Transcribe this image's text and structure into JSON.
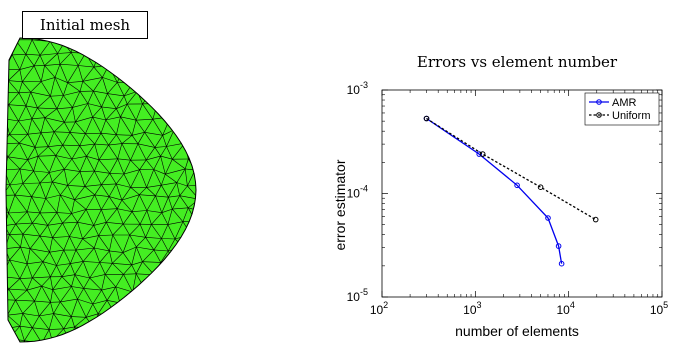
{
  "mesh": {
    "title": "Initial mesh",
    "fill_color": "#44ee22",
    "edge_color": "#000000"
  },
  "chart_data": {
    "type": "line",
    "title": "Errors vs element number",
    "xlabel": "number of elements",
    "ylabel": "error estimator",
    "x_scale": "log",
    "y_scale": "log",
    "xlim": [
      100,
      100000
    ],
    "ylim": [
      1e-05,
      0.001
    ],
    "x_ticks": [
      {
        "value": 100,
        "base": "10",
        "exp": "2"
      },
      {
        "value": 1000,
        "base": "10",
        "exp": "3"
      },
      {
        "value": 10000,
        "base": "10",
        "exp": "4"
      },
      {
        "value": 100000,
        "base": "10",
        "exp": "5"
      }
    ],
    "y_ticks": [
      {
        "value": 1e-05,
        "base": "10",
        "exp": "-5"
      },
      {
        "value": 0.0001,
        "base": "10",
        "exp": "-4"
      },
      {
        "value": 0.001,
        "base": "10",
        "exp": "-3"
      }
    ],
    "grid": false,
    "legend_position": "top-right",
    "series": [
      {
        "name": "AMR",
        "color": "#0000ee",
        "line_style": "solid",
        "marker": "circle",
        "x": [
          300,
          1100,
          2800,
          6000,
          7800,
          8400
        ],
        "y": [
          0.00053,
          0.00024,
          0.00012,
          5.8e-05,
          3.1e-05,
          2.1e-05
        ]
      },
      {
        "name": "Uniform",
        "color": "#000000",
        "line_style": "dotted",
        "marker": "circle",
        "x": [
          300,
          1200,
          5000,
          19500
        ],
        "y": [
          0.00053,
          0.00024,
          0.000115,
          5.6e-05
        ]
      }
    ]
  }
}
